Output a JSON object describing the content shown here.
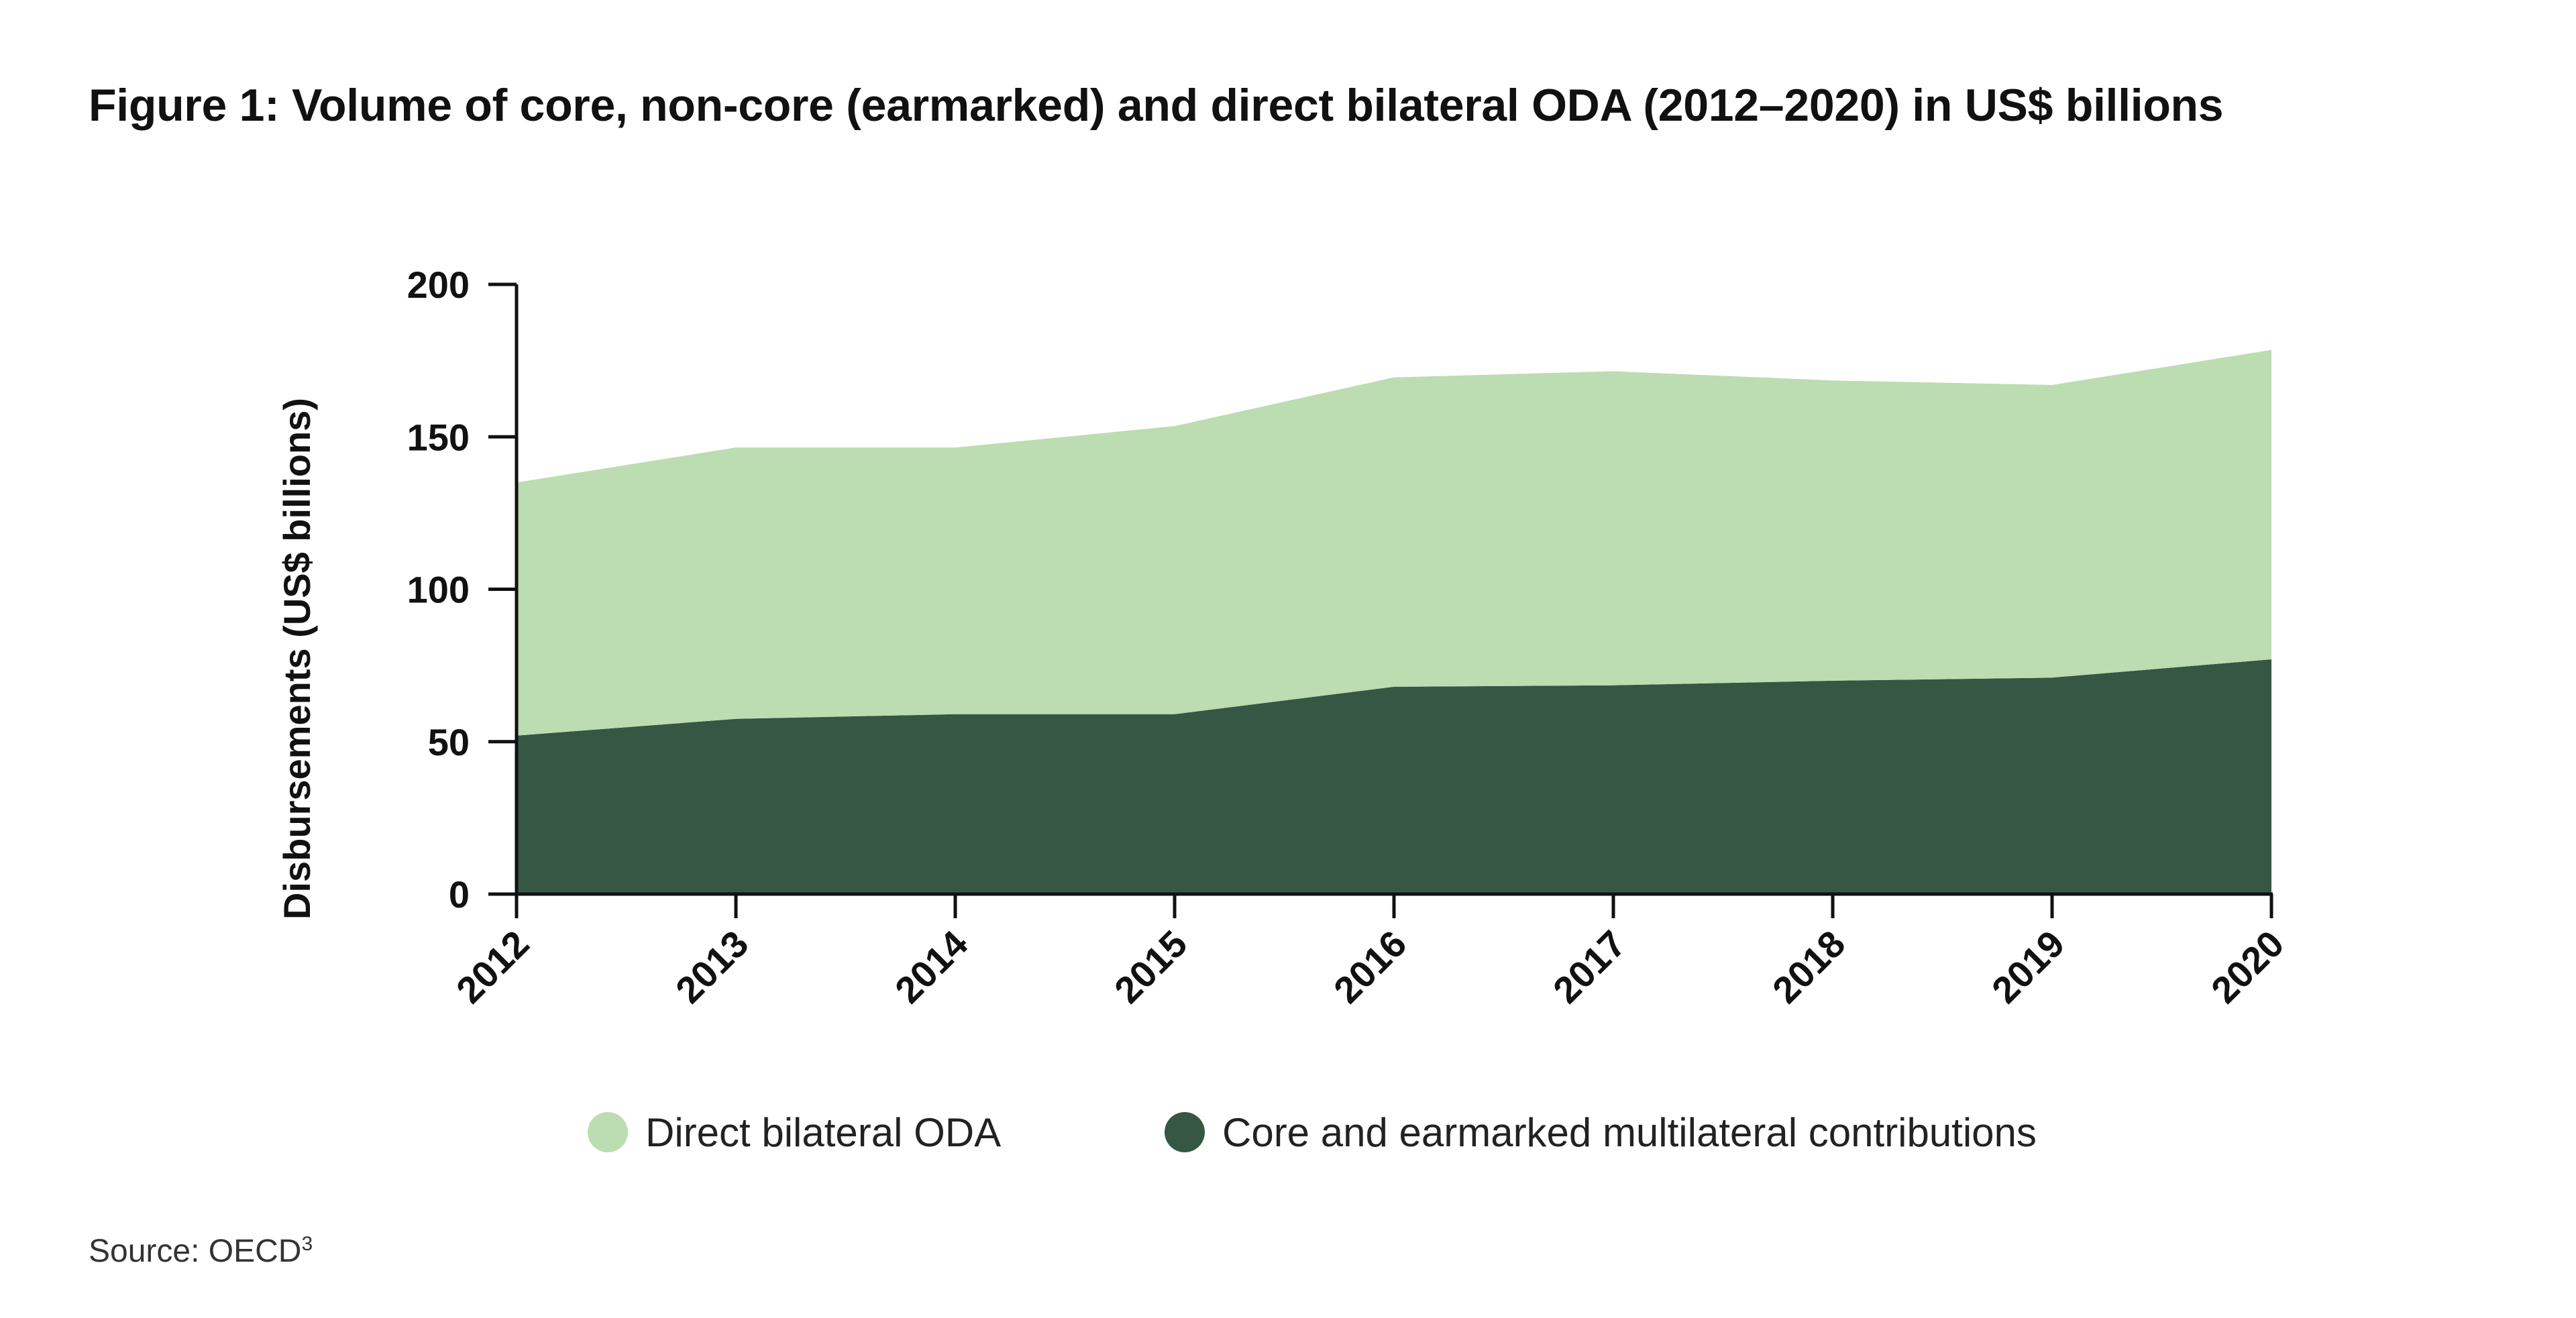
{
  "title": "Figure 1: Volume of core, non-core (earmarked) and direct bilateral ODA (2012–2020) in US$ billions",
  "source": {
    "text": "Source: OECD",
    "footnote": "3"
  },
  "chart_data": {
    "type": "area",
    "stacked": true,
    "x": [
      "2012",
      "2013",
      "2014",
      "2015",
      "2016",
      "2017",
      "2018",
      "2019",
      "2020"
    ],
    "ylabel": "Disbursements (US$ billions)",
    "xlabel": "",
    "ylim": [
      0,
      200
    ],
    "yticks": [
      0,
      50,
      100,
      150,
      200
    ],
    "grid": false,
    "legend_position": "bottom",
    "series": [
      {
        "name": "Core and earmarked multilateral contributions",
        "color": "#365743",
        "values": [
          52,
          57.5,
          59,
          59,
          68,
          68.5,
          70,
          71,
          77
        ]
      },
      {
        "name": "Direct bilateral ODA",
        "color": "#bcdcb1",
        "values": [
          83,
          89,
          87.5,
          94.5,
          101.5,
          103,
          98.5,
          96,
          101.5
        ]
      }
    ],
    "legend": [
      {
        "label": "Direct bilateral ODA",
        "color": "#bcdcb1"
      },
      {
        "label": "Core and earmarked multilateral contributions",
        "color": "#365743"
      }
    ]
  }
}
